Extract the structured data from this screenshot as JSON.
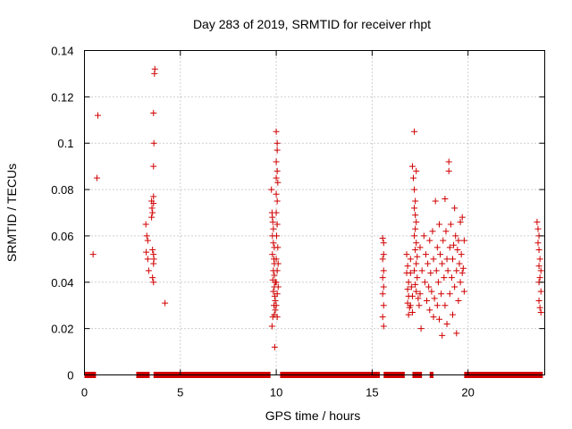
{
  "chart_data": {
    "type": "scatter",
    "title": "Day 283 of 2019, SRMTID for receiver rhpt",
    "xlabel": "GPS time / hours",
    "ylabel": "SRMTID / TECUs",
    "xlim": [
      0,
      24
    ],
    "ylim": [
      0,
      0.14
    ],
    "xticks": [
      0,
      5,
      10,
      15,
      20
    ],
    "xtick_labels": [
      "0",
      "5",
      "10",
      "15",
      "20"
    ],
    "yticks": [
      0,
      0.02,
      0.04,
      0.06,
      0.08,
      0.1,
      0.12,
      0.14
    ],
    "ytick_labels": [
      "0",
      "0.02",
      "0.04",
      "0.06",
      "0.08",
      "0.1",
      "0.12",
      "0.14"
    ],
    "grid": true,
    "marker": "+",
    "color": "#d00000",
    "zero_value_intervals": [
      [
        0.0,
        0.6
      ],
      [
        2.7,
        3.4
      ],
      [
        3.6,
        9.7
      ],
      [
        10.2,
        15.4
      ],
      [
        15.6,
        16.7
      ],
      [
        17.1,
        17.6
      ],
      [
        18.0,
        18.2
      ],
      [
        19.8,
        23.9
      ]
    ],
    "points": [
      [
        0.45,
        0.052
      ],
      [
        0.65,
        0.085
      ],
      [
        0.7,
        0.112
      ],
      [
        3.2,
        0.065
      ],
      [
        3.25,
        0.06
      ],
      [
        3.3,
        0.058
      ],
      [
        3.22,
        0.053
      ],
      [
        3.3,
        0.05
      ],
      [
        3.35,
        0.045
      ],
      [
        3.5,
        0.075
      ],
      [
        3.52,
        0.072
      ],
      [
        3.55,
        0.07
      ],
      [
        3.5,
        0.068
      ],
      [
        3.6,
        0.077
      ],
      [
        3.6,
        0.074
      ],
      [
        3.62,
        0.1
      ],
      [
        3.6,
        0.09
      ],
      [
        3.6,
        0.113
      ],
      [
        3.65,
        0.13
      ],
      [
        3.67,
        0.132
      ],
      [
        3.55,
        0.054
      ],
      [
        3.6,
        0.052
      ],
      [
        3.62,
        0.05
      ],
      [
        3.6,
        0.048
      ],
      [
        3.55,
        0.042
      ],
      [
        3.6,
        0.04
      ],
      [
        4.2,
        0.031
      ],
      [
        9.75,
        0.08
      ],
      [
        9.78,
        0.07
      ],
      [
        9.8,
        0.068
      ],
      [
        9.82,
        0.066
      ],
      [
        9.85,
        0.063
      ],
      [
        9.8,
        0.06
      ],
      [
        9.85,
        0.057
      ],
      [
        9.9,
        0.055
      ],
      [
        9.8,
        0.052
      ],
      [
        9.88,
        0.05
      ],
      [
        9.9,
        0.048
      ],
      [
        9.85,
        0.045
      ],
      [
        9.9,
        0.043
      ],
      [
        9.82,
        0.041
      ],
      [
        9.95,
        0.04
      ],
      [
        9.9,
        0.038
      ],
      [
        9.85,
        0.036
      ],
      [
        9.92,
        0.034
      ],
      [
        9.95,
        0.032
      ],
      [
        9.88,
        0.03
      ],
      [
        9.9,
        0.026
      ],
      [
        9.82,
        0.025
      ],
      [
        9.78,
        0.021
      ],
      [
        9.92,
        0.012
      ],
      [
        9.95,
        0.028
      ],
      [
        10.0,
        0.105
      ],
      [
        10.05,
        0.1
      ],
      [
        10.05,
        0.097
      ],
      [
        10.0,
        0.092
      ],
      [
        10.05,
        0.088
      ],
      [
        10.0,
        0.085
      ],
      [
        10.08,
        0.083
      ],
      [
        10.0,
        0.078
      ],
      [
        10.05,
        0.075
      ],
      [
        10.0,
        0.07
      ],
      [
        10.05,
        0.065
      ],
      [
        10.02,
        0.06
      ],
      [
        10.08,
        0.055
      ],
      [
        10.0,
        0.05
      ],
      [
        10.1,
        0.048
      ],
      [
        10.05,
        0.045
      ],
      [
        10.0,
        0.04
      ],
      [
        10.1,
        0.038
      ],
      [
        10.05,
        0.035
      ],
      [
        10.0,
        0.03
      ],
      [
        10.05,
        0.025
      ],
      [
        15.55,
        0.059
      ],
      [
        15.6,
        0.057
      ],
      [
        15.6,
        0.052
      ],
      [
        15.55,
        0.05
      ],
      [
        15.6,
        0.045
      ],
      [
        15.55,
        0.042
      ],
      [
        15.6,
        0.038
      ],
      [
        15.55,
        0.035
      ],
      [
        15.6,
        0.03
      ],
      [
        15.55,
        0.025
      ],
      [
        15.6,
        0.021
      ],
      [
        16.8,
        0.052
      ],
      [
        16.85,
        0.047
      ],
      [
        16.8,
        0.044
      ],
      [
        16.9,
        0.04
      ],
      [
        16.85,
        0.037
      ],
      [
        16.9,
        0.034
      ],
      [
        16.85,
        0.031
      ],
      [
        16.95,
        0.029
      ],
      [
        16.9,
        0.026
      ],
      [
        17.0,
        0.05
      ],
      [
        17.0,
        0.044
      ],
      [
        17.05,
        0.038
      ],
      [
        17.1,
        0.034
      ],
      [
        17.0,
        0.03
      ],
      [
        17.1,
        0.027
      ],
      [
        17.1,
        0.09
      ],
      [
        17.15,
        0.085
      ],
      [
        17.2,
        0.08
      ],
      [
        17.25,
        0.075
      ],
      [
        17.2,
        0.072
      ],
      [
        17.25,
        0.069
      ],
      [
        17.3,
        0.066
      ],
      [
        17.25,
        0.063
      ],
      [
        17.2,
        0.06
      ],
      [
        17.3,
        0.057
      ],
      [
        17.25,
        0.054
      ],
      [
        17.35,
        0.051
      ],
      [
        17.3,
        0.048
      ],
      [
        17.2,
        0.045
      ],
      [
        17.35,
        0.042
      ],
      [
        17.25,
        0.039
      ],
      [
        17.3,
        0.036
      ],
      [
        17.4,
        0.033
      ],
      [
        17.2,
        0.105
      ],
      [
        17.3,
        0.088
      ],
      [
        17.45,
        0.03
      ],
      [
        17.5,
        0.055
      ],
      [
        17.5,
        0.035
      ],
      [
        17.55,
        0.02
      ],
      [
        17.6,
        0.045
      ],
      [
        17.7,
        0.06
      ],
      [
        17.75,
        0.04
      ],
      [
        17.8,
        0.052
      ],
      [
        17.85,
        0.032
      ],
      [
        17.9,
        0.048
      ],
      [
        17.95,
        0.038
      ],
      [
        18.0,
        0.058
      ],
      [
        18.0,
        0.028
      ],
      [
        18.05,
        0.044
      ],
      [
        18.1,
        0.036
      ],
      [
        18.15,
        0.062
      ],
      [
        18.2,
        0.05
      ],
      [
        18.2,
        0.025
      ],
      [
        18.25,
        0.033
      ],
      [
        18.3,
        0.075
      ],
      [
        18.35,
        0.045
      ],
      [
        18.4,
        0.055
      ],
      [
        18.4,
        0.03
      ],
      [
        18.45,
        0.04
      ],
      [
        18.5,
        0.065
      ],
      [
        18.5,
        0.024
      ],
      [
        18.55,
        0.052
      ],
      [
        18.6,
        0.035
      ],
      [
        18.65,
        0.048
      ],
      [
        18.65,
        0.017
      ],
      [
        18.7,
        0.058
      ],
      [
        18.75,
        0.042
      ],
      [
        18.8,
        0.03
      ],
      [
        18.8,
        0.076
      ],
      [
        18.85,
        0.062
      ],
      [
        18.9,
        0.05
      ],
      [
        18.9,
        0.022
      ],
      [
        18.95,
        0.045
      ],
      [
        19.0,
        0.092
      ],
      [
        19.0,
        0.088
      ],
      [
        19.05,
        0.055
      ],
      [
        19.05,
        0.035
      ],
      [
        19.1,
        0.065
      ],
      [
        19.15,
        0.042
      ],
      [
        19.2,
        0.05
      ],
      [
        19.2,
        0.026
      ],
      [
        19.25,
        0.056
      ],
      [
        19.3,
        0.038
      ],
      [
        19.3,
        0.072
      ],
      [
        19.35,
        0.06
      ],
      [
        19.4,
        0.045
      ],
      [
        19.4,
        0.018
      ],
      [
        19.45,
        0.054
      ],
      [
        19.5,
        0.032
      ],
      [
        19.5,
        0.058
      ],
      [
        19.55,
        0.048
      ],
      [
        19.6,
        0.066
      ],
      [
        19.6,
        0.04
      ],
      [
        19.65,
        0.052
      ],
      [
        19.7,
        0.044
      ],
      [
        19.7,
        0.068
      ],
      [
        19.75,
        0.046
      ],
      [
        19.8,
        0.058
      ],
      [
        19.8,
        0.036
      ],
      [
        23.6,
        0.066
      ],
      [
        23.65,
        0.063
      ],
      [
        23.7,
        0.06
      ],
      [
        23.65,
        0.057
      ],
      [
        23.7,
        0.054
      ],
      [
        23.75,
        0.05
      ],
      [
        23.7,
        0.047
      ],
      [
        23.8,
        0.045
      ],
      [
        23.75,
        0.042
      ],
      [
        23.7,
        0.04
      ],
      [
        23.8,
        0.036
      ],
      [
        23.7,
        0.032
      ],
      [
        23.75,
        0.029
      ],
      [
        23.8,
        0.027
      ]
    ]
  }
}
